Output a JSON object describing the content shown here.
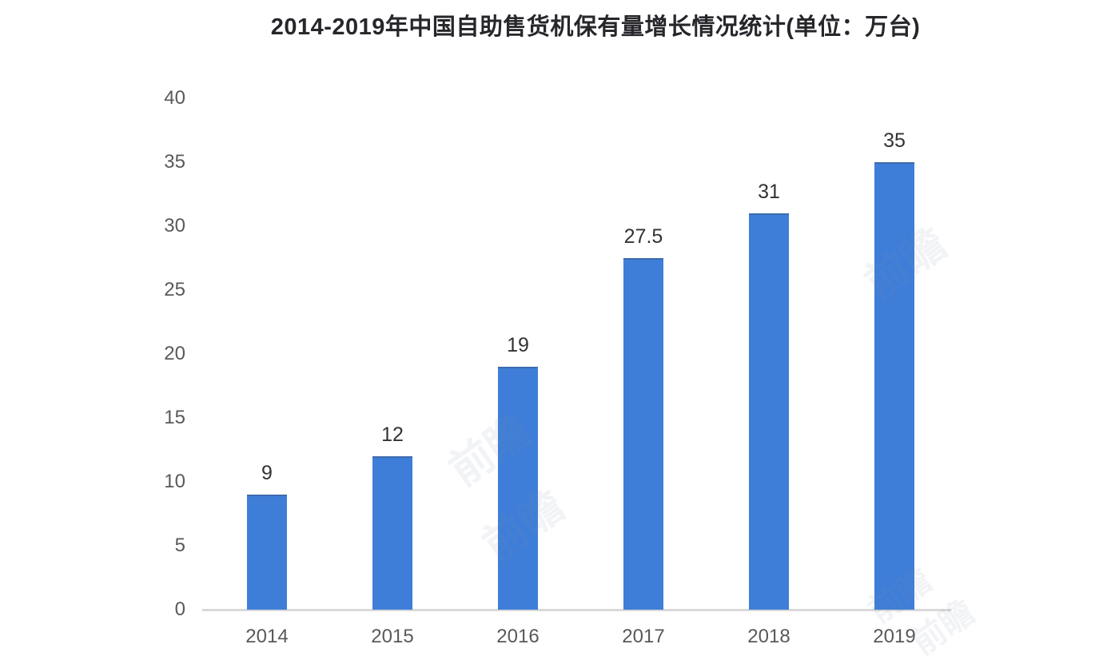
{
  "page": {
    "background": "#ffffff"
  },
  "chart_data": {
    "type": "bar",
    "title": "2014-2019年中国自助售货机保有量增长情况统计(单位：万台)",
    "unit_label": "万台",
    "categories": [
      "2014",
      "2015",
      "2016",
      "2017",
      "2018",
      "2019"
    ],
    "values": [
      9,
      12,
      19,
      27.5,
      31,
      35
    ],
    "value_labels": [
      "9",
      "12",
      "19",
      "27.5",
      "31",
      "35"
    ],
    "y_ticks": [
      0,
      5,
      10,
      15,
      20,
      25,
      30,
      35,
      40
    ],
    "ylim": [
      0,
      40
    ],
    "xlabel": "",
    "ylabel": "",
    "grid": false,
    "legend_position": "none",
    "colors": {
      "bar": "#3E7ED8",
      "axis_line": "#D9D9D9",
      "title_text": "#26262B",
      "tick_text": "#595959",
      "value_text": "#333333"
    }
  },
  "watermark": {
    "text": "前瞻"
  }
}
